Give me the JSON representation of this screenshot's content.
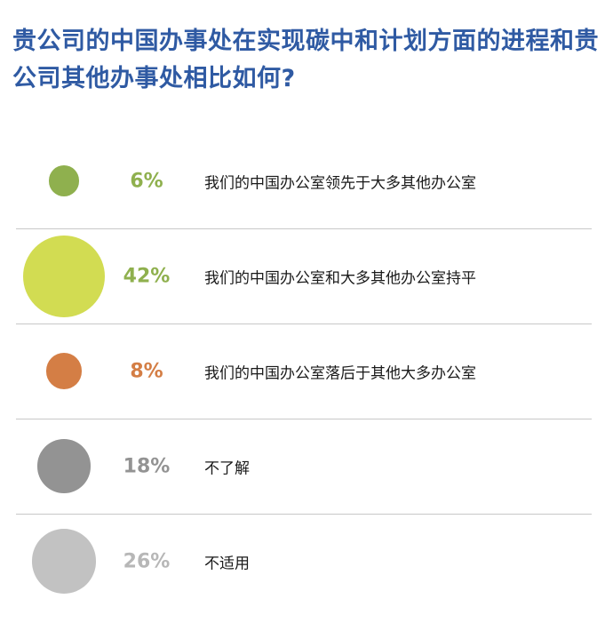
{
  "chart_data": {
    "type": "bubble",
    "title": "贵公司的中国办事处在实现碳中和计划方面的进程和贵公司其他办事处相比如何?",
    "unit": "%",
    "categories": [
      "我们的中国办公室领先于大多其他办公室",
      "我们的中国办公室和大多其他办公室持平",
      "我们的中国办公室落后于其他大多办公室",
      "不了解",
      "不适用"
    ],
    "values": [
      6,
      42,
      8,
      18,
      26
    ],
    "value_labels": [
      "6%",
      "42%",
      "8%",
      "18%",
      "26%"
    ],
    "colors": [
      "#8fb04e",
      "#d2dc52",
      "#d47e45",
      "#939393",
      "#c2c2c2"
    ],
    "text_colors": [
      "#8fb04e",
      "#8fb04e",
      "#d47e45",
      "#939393",
      "#b7b7b7"
    ]
  }
}
